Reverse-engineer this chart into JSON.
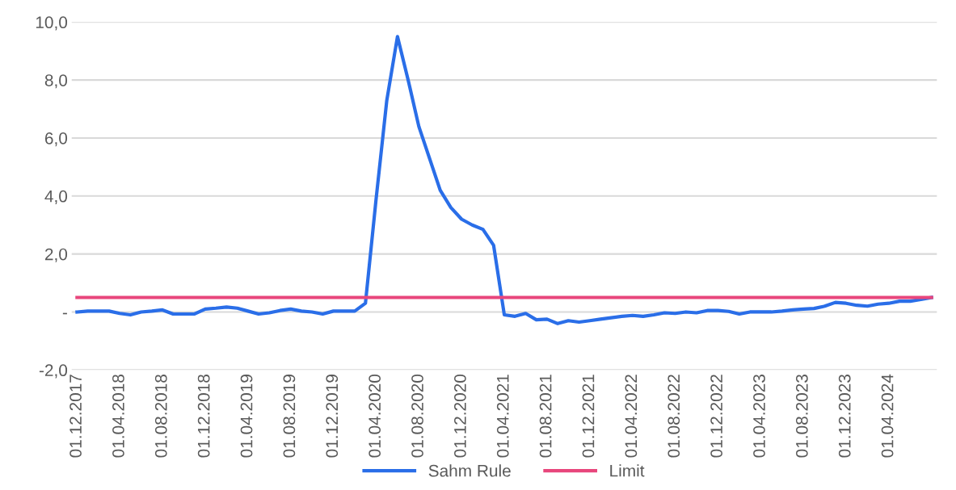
{
  "chart_data": {
    "type": "line",
    "categories": [
      "01.12.2017",
      null,
      null,
      null,
      "01.04.2018",
      null,
      null,
      null,
      "01.08.2018",
      null,
      null,
      null,
      "01.12.2018",
      null,
      null,
      null,
      "01.04.2019",
      null,
      null,
      null,
      "01.08.2019",
      null,
      null,
      null,
      "01.12.2019",
      null,
      null,
      null,
      "01.04.2020",
      null,
      null,
      null,
      "01.08.2020",
      null,
      null,
      null,
      "01.12.2020",
      null,
      null,
      null,
      "01.04.2021",
      null,
      null,
      null,
      "01.08.2021",
      null,
      null,
      null,
      "01.12.2021",
      null,
      null,
      null,
      "01.04.2022",
      null,
      null,
      null,
      "01.08.2022",
      null,
      null,
      null,
      "01.12.2022",
      null,
      null,
      null,
      "01.04.2023",
      null,
      null,
      null,
      "01.08.2023",
      null,
      null,
      null,
      "01.12.2023",
      null,
      null,
      null,
      "01.04.2024",
      null,
      null,
      null,
      null
    ],
    "series": [
      {
        "name": "Sahm Rule",
        "color": "#2a6ee8",
        "values": [
          0.0,
          0.03,
          0.03,
          0.03,
          -0.05,
          -0.1,
          0.0,
          0.03,
          0.07,
          -0.07,
          -0.07,
          -0.07,
          0.1,
          0.13,
          0.17,
          0.13,
          0.03,
          -0.07,
          -0.03,
          0.05,
          0.1,
          0.03,
          0.0,
          -0.07,
          0.03,
          0.03,
          0.03,
          0.3,
          3.9,
          7.3,
          9.5,
          8.0,
          6.4,
          5.3,
          4.2,
          3.6,
          3.2,
          3.0,
          2.85,
          2.3,
          -0.1,
          -0.15,
          -0.05,
          -0.27,
          -0.25,
          -0.4,
          -0.3,
          -0.35,
          -0.3,
          -0.25,
          -0.2,
          -0.15,
          -0.12,
          -0.15,
          -0.1,
          -0.03,
          -0.05,
          0.0,
          -0.03,
          0.05,
          0.05,
          0.02,
          -0.07,
          0.0,
          0.0,
          0.0,
          0.03,
          0.07,
          0.1,
          0.12,
          0.2,
          0.33,
          0.3,
          0.23,
          0.2,
          0.27,
          0.3,
          0.37,
          0.37,
          0.43,
          0.5
        ]
      },
      {
        "name": "Limit",
        "color": "#e8467c",
        "values": [
          0.5,
          0.5,
          0.5,
          0.5,
          0.5,
          0.5,
          0.5,
          0.5,
          0.5,
          0.5,
          0.5,
          0.5,
          0.5,
          0.5,
          0.5,
          0.5,
          0.5,
          0.5,
          0.5,
          0.5,
          0.5,
          0.5,
          0.5,
          0.5,
          0.5,
          0.5,
          0.5,
          0.5,
          0.5,
          0.5,
          0.5,
          0.5,
          0.5,
          0.5,
          0.5,
          0.5,
          0.5,
          0.5,
          0.5,
          0.5,
          0.5,
          0.5,
          0.5,
          0.5,
          0.5,
          0.5,
          0.5,
          0.5,
          0.5,
          0.5,
          0.5,
          0.5,
          0.5,
          0.5,
          0.5,
          0.5,
          0.5,
          0.5,
          0.5,
          0.5,
          0.5,
          0.5,
          0.5,
          0.5,
          0.5,
          0.5,
          0.5,
          0.5,
          0.5,
          0.5,
          0.5,
          0.5,
          0.5,
          0.5,
          0.5,
          0.5,
          0.5,
          0.5,
          0.5,
          0.5,
          0.5
        ]
      }
    ],
    "ylim": [
      -2,
      10
    ],
    "yticks": [
      {
        "value": -2,
        "label": "-2,0"
      },
      {
        "value": 0,
        "label": "-"
      },
      {
        "value": 2,
        "label": "2,0"
      },
      {
        "value": 4,
        "label": "4,0"
      },
      {
        "value": 6,
        "label": "6,0"
      },
      {
        "value": 8,
        "label": "8,0"
      },
      {
        "value": 10,
        "label": "10,0"
      }
    ],
    "grid": "y",
    "legend": "bottom",
    "marker": "none",
    "line_style": "solid"
  }
}
